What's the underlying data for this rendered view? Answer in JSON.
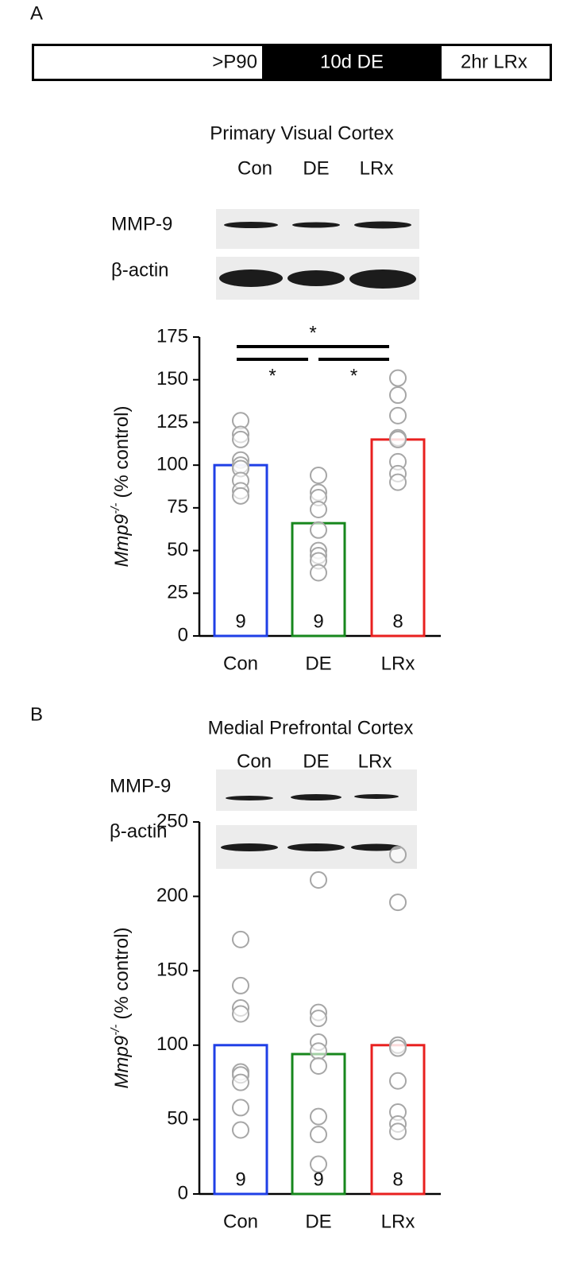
{
  "panel_labels": [
    "A",
    "B"
  ],
  "timeline": [
    ">P90",
    "10d DE",
    "2hr LRx"
  ],
  "blots": [
    {
      "title": "Primary Visual Cortex",
      "lanes": [
        "Con",
        "DE",
        "LRx"
      ],
      "rows": [
        "MMP-9",
        "β-actin"
      ]
    },
    {
      "title": "Medial Prefrontal Cortex",
      "lanes": [
        "Con",
        "DE",
        "LRx"
      ],
      "rows": [
        "MMP-9",
        "β-actin"
      ]
    }
  ],
  "chart_data": [
    {
      "type": "bar",
      "y_label": {
        "gene": "Mmp9",
        "superscript": "-/-",
        "unit": "(% control)"
      },
      "categories": [
        "Con",
        "DE",
        "LRx"
      ],
      "values": [
        100,
        66,
        115
      ],
      "colors": [
        "#1f3fe6",
        "#17871d",
        "#e8201f"
      ],
      "points": [
        [
          126,
          118,
          115,
          103,
          100,
          98,
          91,
          85,
          82
        ],
        [
          94,
          84,
          81,
          74,
          62,
          50,
          47,
          44,
          37
        ],
        [
          151,
          141,
          129,
          116,
          115,
          102,
          95,
          90
        ]
      ],
      "point_color": "#a6a6a6",
      "n": [
        9,
        9,
        8
      ],
      "significance": [
        {
          "between": [
            "Con",
            "LRx"
          ],
          "label": "*"
        },
        {
          "between": [
            "Con",
            "DE"
          ],
          "label": "*"
        },
        {
          "between": [
            "DE",
            "LRx"
          ],
          "label": "*"
        }
      ],
      "ylim": [
        0,
        175
      ],
      "yticks": [
        0,
        25,
        50,
        75,
        100,
        125,
        150,
        175
      ]
    },
    {
      "type": "bar",
      "y_label": {
        "gene": "Mmp9",
        "superscript": "-/-",
        "unit": "(% control)"
      },
      "categories": [
        "Con",
        "DE",
        "LRx"
      ],
      "values": [
        100,
        94,
        100
      ],
      "colors": [
        "#1f3fe6",
        "#17871d",
        "#e8201f"
      ],
      "points": [
        [
          171,
          140,
          125,
          121,
          82,
          80,
          75,
          58,
          43
        ],
        [
          211,
          122,
          118,
          102,
          96,
          86,
          52,
          40,
          20
        ],
        [
          228,
          196,
          100,
          98,
          76,
          55,
          47,
          42
        ]
      ],
      "point_color": "#a6a6a6",
      "n": [
        9,
        9,
        8
      ],
      "significance": [],
      "ylim": [
        0,
        250
      ],
      "yticks": [
        0,
        50,
        100,
        150,
        200,
        250
      ]
    }
  ]
}
